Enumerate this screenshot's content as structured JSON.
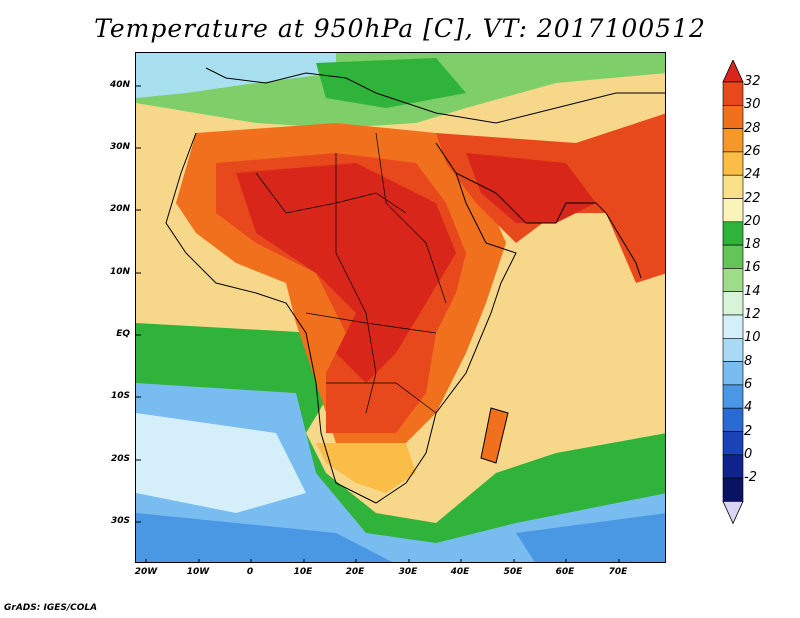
{
  "title": "Temperature at 950hPa [C], VT: 2017100512",
  "footer": "GrADS: IGES/COLA",
  "map": {
    "lat_labels": [
      "40N",
      "30N",
      "20N",
      "10N",
      "EQ",
      "10S",
      "20S",
      "30S"
    ],
    "lon_labels": [
      "20W",
      "10W",
      "0",
      "10E",
      "20E",
      "30E",
      "40E",
      "50E",
      "60E",
      "70E"
    ]
  },
  "colorbar": {
    "labels": [
      "32",
      "30",
      "28",
      "26",
      "24",
      "22",
      "20",
      "18",
      "16",
      "14",
      "12",
      "10",
      "8",
      "6",
      "4",
      "2",
      "0",
      "-2"
    ],
    "colors": [
      "#d8261a",
      "#e8491c",
      "#f0701e",
      "#f5982a",
      "#f9bd48",
      "#fbe08a",
      "#fbf4b8",
      "#2fb33a",
      "#63c457",
      "#9edc8a",
      "#d8f4d8",
      "#d5effa",
      "#a9d9f5",
      "#79bcef",
      "#4a97e4",
      "#2a6bd3",
      "#1a44b5",
      "#10238a",
      "#0a1363",
      "#d9d6f5"
    ]
  }
}
